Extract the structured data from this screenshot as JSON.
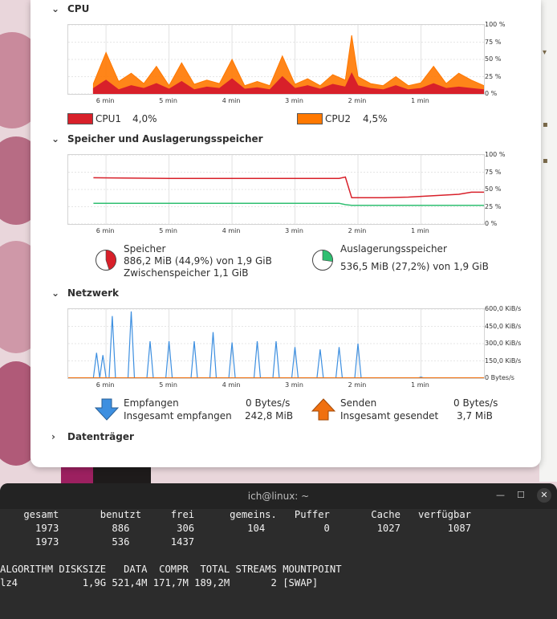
{
  "cpu": {
    "title": "CPU",
    "x_ticks": [
      "6 min",
      "5 min",
      "4 min",
      "3 min",
      "2 min",
      "1 min"
    ],
    "y_ticks": [
      "100 %",
      "75 %",
      "50 %",
      "25 %",
      "0 %"
    ],
    "cpu1": {
      "label": "CPU1",
      "value": "4,0%",
      "color": "#d8202a"
    },
    "cpu2": {
      "label": "CPU2",
      "value": "4,5%",
      "color": "#ff7800"
    }
  },
  "memory": {
    "title": "Speicher und Auslagerungsspeicher",
    "x_ticks": [
      "6 min",
      "5 min",
      "4 min",
      "3 min",
      "2 min",
      "1 min"
    ],
    "y_ticks": [
      "100 %",
      "75 %",
      "50 %",
      "25 %",
      "0 %"
    ],
    "ram": {
      "label": "Speicher",
      "usage": "886,2 MiB (44,9%) von 1,9 GiB",
      "cache": "Zwischenspeicher 1,1 GiB",
      "color": "#d8202a",
      "fraction": 0.449
    },
    "swap": {
      "label": "Auslagerungsspeicher",
      "usage": "536,5 MiB (27,2%) von 1,9 GiB",
      "color": "#2fbf71",
      "fraction": 0.272
    }
  },
  "network": {
    "title": "Netzwerk",
    "x_ticks": [
      "6 min",
      "5 min",
      "4 min",
      "3 min",
      "2 min",
      "1 min"
    ],
    "y_ticks": [
      "600,0 KiB/s",
      "450,0 KiB/s",
      "300,0 KiB/s",
      "150,0 KiB/s",
      "0 Bytes/s"
    ],
    "recv": {
      "label": "Empfangen",
      "rate": "0 Bytes/s",
      "total_label": "Insgesamt empfangen",
      "total": "242,8 MiB",
      "color": "#3d8fe0"
    },
    "send": {
      "label": "Senden",
      "rate": "0 Bytes/s",
      "total_label": "Insgesamt gesendet",
      "total": "3,7 MiB",
      "color": "#f07010"
    }
  },
  "disks": {
    "title": "Datenträger"
  },
  "terminal": {
    "title": "ich@linux: ~",
    "free_header": "    gesamt       benutzt     frei      gemeins.   Puffer       Cache   verfügbar",
    "free_mem": "      1973         886        306         104          0        1027        1087",
    "free_swap": "      1973         536       1437",
    "zram_header": "ALGORITHM DISKSIZE   DATA  COMPR  TOTAL STREAMS MOUNTPOINT",
    "zram_row": "lz4           1,9G 521,4M 171,7M 189,2M       2 [SWAP]"
  },
  "chart_data": [
    {
      "type": "area",
      "title": "CPU",
      "x_unit": "min ago",
      "x": [
        6.2,
        6.0,
        5.8,
        5.6,
        5.4,
        5.2,
        5.0,
        4.8,
        4.6,
        4.4,
        4.2,
        4.0,
        3.8,
        3.6,
        3.4,
        3.2,
        3.0,
        2.8,
        2.6,
        2.4,
        2.2,
        2.1,
        2.0,
        1.8,
        1.6,
        1.4,
        1.2,
        1.0,
        0.8,
        0.6,
        0.4,
        0.2,
        0.0
      ],
      "series": [
        {
          "name": "CPU1",
          "color": "#d8202a",
          "values": [
            8,
            20,
            6,
            12,
            8,
            15,
            7,
            18,
            6,
            10,
            8,
            22,
            7,
            9,
            6,
            25,
            8,
            12,
            7,
            14,
            10,
            30,
            12,
            8,
            6,
            12,
            6,
            8,
            15,
            8,
            10,
            8,
            6
          ]
        },
        {
          "name": "CPU2",
          "color": "#ff7800",
          "values": [
            15,
            60,
            18,
            30,
            15,
            40,
            12,
            45,
            14,
            20,
            15,
            50,
            12,
            18,
            12,
            55,
            14,
            22,
            12,
            28,
            20,
            85,
            25,
            15,
            12,
            25,
            12,
            16,
            40,
            15,
            30,
            20,
            12
          ]
        }
      ],
      "ylim": [
        0,
        100
      ],
      "y_unit": "%"
    },
    {
      "type": "line",
      "title": "Speicher und Auslagerungsspeicher",
      "x_unit": "min ago",
      "x": [
        6.2,
        5.0,
        4.0,
        3.0,
        2.3,
        2.2,
        2.1,
        2.0,
        1.6,
        1.2,
        1.0,
        0.8,
        0.6,
        0.4,
        0.2,
        0.0
      ],
      "series": [
        {
          "name": "Speicher",
          "color": "#d8202a",
          "values": [
            67,
            66,
            66,
            66,
            66,
            68,
            38,
            38,
            38,
            39,
            40,
            41,
            42,
            43,
            46,
            46
          ]
        },
        {
          "name": "Auslagerungsspeicher",
          "color": "#2fbf71",
          "values": [
            30,
            30,
            30,
            30,
            30,
            28,
            27,
            27,
            27,
            27,
            27,
            27,
            27,
            27,
            27,
            27
          ]
        }
      ],
      "ylim": [
        0,
        100
      ],
      "y_unit": "%"
    },
    {
      "type": "line",
      "title": "Netzwerk",
      "x_unit": "min ago",
      "x": [
        6.15,
        6.05,
        5.9,
        5.6,
        5.3,
        5.0,
        4.6,
        4.3,
        4.0,
        3.6,
        3.3,
        3.0,
        2.6,
        2.3,
        2.0,
        1.0
      ],
      "series": [
        {
          "name": "Empfangen",
          "color": "#3d8fe0",
          "values": [
            220,
            200,
            540,
            580,
            320,
            320,
            320,
            400,
            310,
            320,
            320,
            270,
            250,
            270,
            300,
            10
          ]
        },
        {
          "name": "Senden",
          "color": "#f07010",
          "values": [
            0,
            0,
            0,
            0,
            0,
            0,
            0,
            0,
            0,
            0,
            0,
            0,
            0,
            0,
            0,
            0
          ]
        }
      ],
      "ylim": [
        0,
        600
      ],
      "y_unit": "KiB/s"
    }
  ]
}
